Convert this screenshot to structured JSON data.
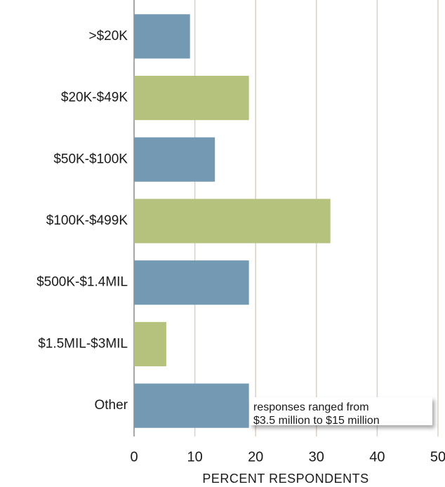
{
  "chart_data": {
    "type": "barh",
    "xlabel": "PERCENT RESPONDENTS",
    "categories": [
      ">$20K",
      "$20K-$49K",
      "$50K-$100K",
      "$100K-$499K",
      "$500K-$1.4MIL",
      "$1.5MIL-$3MIL",
      "Other"
    ],
    "values": [
      9.2,
      18.9,
      13.3,
      32.3,
      18.9,
      5.3,
      18.9
    ],
    "colors": [
      "#7499b3",
      "#b4c27d",
      "#7499b3",
      "#b4c27d",
      "#7499b3",
      "#b4c27d",
      "#7499b3"
    ],
    "xlim": [
      0,
      50
    ],
    "xticks": [
      0,
      10,
      20,
      30,
      40,
      50
    ],
    "grid": true,
    "annotation": [
      "responses ranged from",
      "$3.5 million to $15 million"
    ]
  }
}
